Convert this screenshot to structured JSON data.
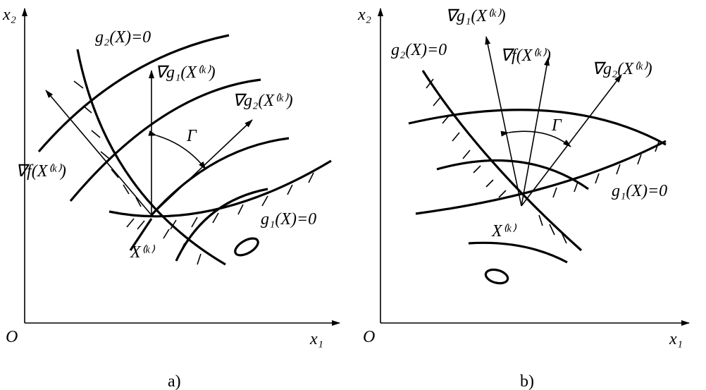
{
  "panels": [
    {
      "caption": "a)",
      "axis_y": "x₂",
      "axis_x": "x₁",
      "origin": "O",
      "labels": {
        "g2": "g₂(X)=0",
        "grad_g1": "∇g₁(X⁽ᵏ⁾)",
        "grad_g2": "∇g₂(X⁽ᵏ⁾)",
        "gamma": "Γ",
        "grad_f": "∇f(X⁽ᵏ⁾)",
        "g1": "g₁(X)=0",
        "point": "X⁽ᵏ⁾"
      }
    },
    {
      "caption": "b)",
      "axis_y": "x₂",
      "axis_x": "x₁",
      "origin": "O",
      "labels": {
        "grad_g1": "∇g₁(X⁽ᵏ⁾)",
        "g2": "g₂(X)=0",
        "grad_f": "∇f(X⁽ᵏ⁾)",
        "grad_g2": "∇g₂(X⁽ᵏ⁾)",
        "gamma": "Γ",
        "g1": "g₁(X)=0",
        "point": "X⁽ᵏ⁾"
      }
    }
  ]
}
